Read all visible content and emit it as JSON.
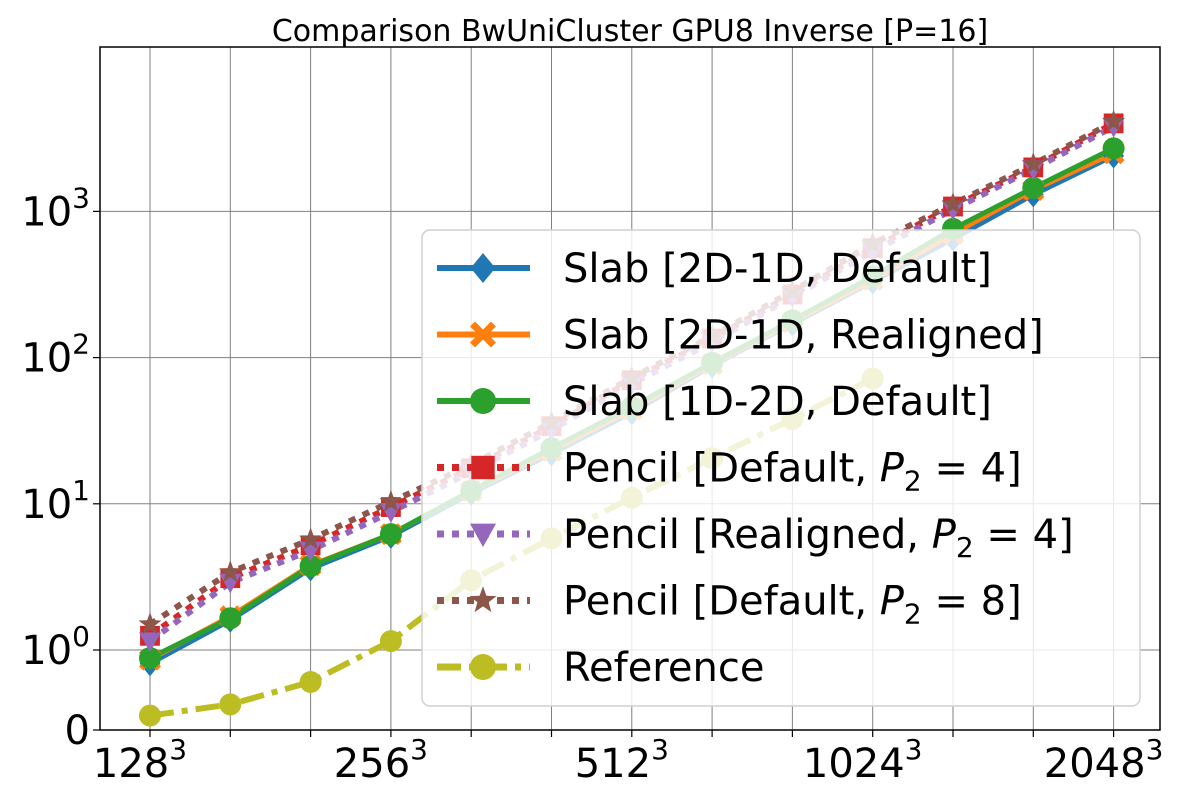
{
  "chart_data": {
    "type": "line",
    "title": "Comparison BwUniCluster GPU8 Inverse [P=16]",
    "xlabel": "",
    "ylabel": "",
    "y_scale": "symlog",
    "grid": true,
    "legend_position": "center-right",
    "x_categories": [
      "128^3",
      "",
      "",
      "256^3",
      "",
      "",
      "512^3",
      "",
      "",
      "1024^3",
      "",
      "",
      "2048^3"
    ],
    "x_tick_labels": [
      {
        "index": 0,
        "base": "128",
        "exp": "3"
      },
      {
        "index": 3,
        "base": "256",
        "exp": "3"
      },
      {
        "index": 6,
        "base": "512",
        "exp": "3"
      },
      {
        "index": 9,
        "base": "1024",
        "exp": "3"
      },
      {
        "index": 12,
        "base": "2048",
        "exp": "3"
      }
    ],
    "y_tick_labels": [
      {
        "value": 0,
        "base": "0",
        "exp": ""
      },
      {
        "value": 1,
        "base": "10",
        "exp": "0"
      },
      {
        "value": 10,
        "base": "10",
        "exp": "1"
      },
      {
        "value": 100,
        "base": "10",
        "exp": "2"
      },
      {
        "value": 1000,
        "base": "10",
        "exp": "3"
      }
    ],
    "series": [
      {
        "name": "Slab [2D-1D, Default]",
        "color": "#1f77b4",
        "marker": "diamond",
        "linestyle": "solid",
        "values": [
          0.83,
          1.6,
          3.6,
          6.0,
          11.8,
          22,
          42,
          88,
          170,
          330,
          650,
          1300,
          2400
        ]
      },
      {
        "name": "Slab [2D-1D, Realigned]",
        "color": "#ff7f0e",
        "marker": "x",
        "linestyle": "solid",
        "values": [
          0.88,
          1.7,
          3.8,
          6.2,
          12.2,
          23,
          44,
          90,
          175,
          340,
          700,
          1400,
          2500
        ]
      },
      {
        "name": "Slab [1D-2D, Default]",
        "color": "#2ca02c",
        "marker": "circle",
        "linestyle": "solid",
        "values": [
          0.9,
          1.65,
          3.75,
          6.2,
          12.3,
          24,
          46,
          92,
          180,
          360,
          760,
          1450,
          2700
        ]
      },
      {
        "name": "Pencil [Default, P_2 = 4]",
        "color": "#d62728",
        "marker": "square",
        "linestyle": "dotted",
        "values": [
          1.25,
          3.1,
          5.2,
          9.5,
          17.5,
          34,
          70,
          135,
          270,
          560,
          1080,
          2000,
          4000
        ]
      },
      {
        "name": "Pencil [Realigned, P_2 = 4]",
        "color": "#9467bd",
        "marker": "triangle-down",
        "linestyle": "dotted",
        "values": [
          1.15,
          2.9,
          4.8,
          8.8,
          16.5,
          32,
          66,
          128,
          260,
          530,
          1030,
          1950,
          3800
        ]
      },
      {
        "name": "Pencil [Default, P_2 = 8]",
        "color": "#8c564b",
        "marker": "star",
        "linestyle": "dotted",
        "values": [
          1.5,
          3.4,
          5.7,
          10.3,
          18.5,
          36,
          73,
          140,
          285,
          600,
          1120,
          2100,
          4100
        ]
      },
      {
        "name": "Reference",
        "color": "#bcbd22",
        "marker": "circle",
        "linestyle": "dashdot",
        "values": [
          0.18,
          0.32,
          0.6,
          1.15,
          3.0,
          5.8,
          11,
          20.5,
          38,
          72,
          null,
          null,
          null
        ]
      }
    ]
  }
}
